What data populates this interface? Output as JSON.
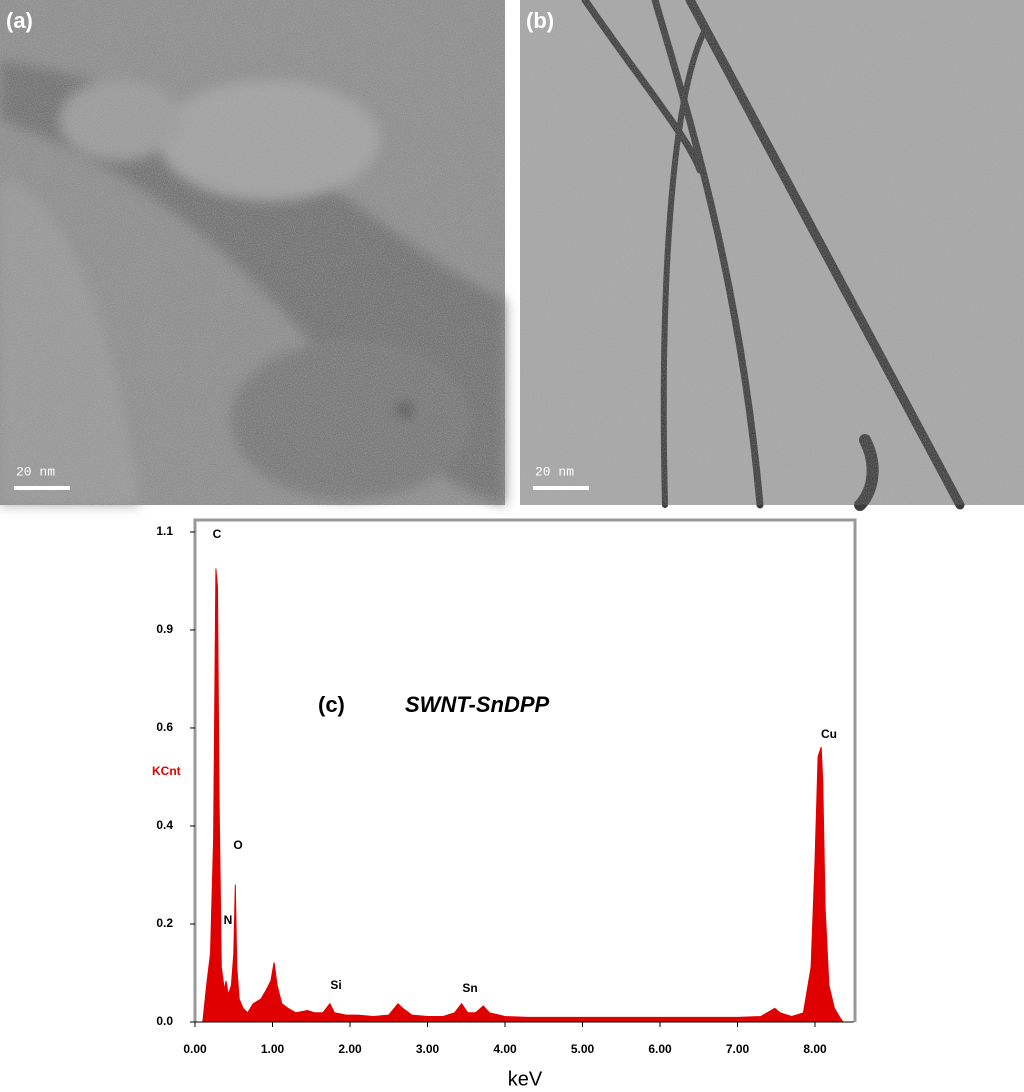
{
  "panels": [
    {
      "label": "(a)",
      "scale_bar": "20 nm"
    },
    {
      "label": "(b)",
      "scale_bar": "20 nm"
    }
  ],
  "chart_data": {
    "type": "area",
    "panel_label": "(c)",
    "title": "SWNT-SnDPP",
    "x_label": "keV",
    "y_label": "KCnt",
    "annotations": [
      "C",
      "O",
      "N",
      "Si",
      "Sn",
      "Cu"
    ],
    "x": [
      0.1,
      0.15,
      0.2,
      0.24,
      0.27,
      0.29,
      0.31,
      0.34,
      0.38,
      0.4,
      0.43,
      0.47,
      0.5,
      0.52,
      0.54,
      0.57,
      0.62,
      0.68,
      0.75,
      0.85,
      0.92,
      0.98,
      1.02,
      1.06,
      1.12,
      1.2,
      1.3,
      1.45,
      1.55,
      1.65,
      1.74,
      1.8,
      1.95,
      2.1,
      2.3,
      2.5,
      2.62,
      2.68,
      2.8,
      3.0,
      3.2,
      3.35,
      3.44,
      3.52,
      3.62,
      3.72,
      3.8,
      4.0,
      4.3,
      4.6,
      5.0,
      5.5,
      6.0,
      6.5,
      7.0,
      7.3,
      7.48,
      7.55,
      7.7,
      7.85,
      7.95,
      8.0,
      8.04,
      8.08,
      8.1,
      8.13,
      8.18,
      8.25,
      8.32,
      8.36
    ],
    "series": [
      {
        "color": "#e00000",
        "values": [
          0,
          0.08,
          0.15,
          0.4,
          0.99,
          0.95,
          0.5,
          0.12,
          0.07,
          0.09,
          0.06,
          0.08,
          0.15,
          0.3,
          0.12,
          0.05,
          0.03,
          0.02,
          0.04,
          0.05,
          0.07,
          0.09,
          0.13,
          0.08,
          0.04,
          0.03,
          0.02,
          0.025,
          0.02,
          0.02,
          0.04,
          0.02,
          0.015,
          0.015,
          0.012,
          0.015,
          0.04,
          0.03,
          0.015,
          0.012,
          0.012,
          0.02,
          0.04,
          0.02,
          0.02,
          0.035,
          0.02,
          0.012,
          0.01,
          0.01,
          0.01,
          0.01,
          0.01,
          0.01,
          0.01,
          0.012,
          0.03,
          0.02,
          0.012,
          0.02,
          0.12,
          0.35,
          0.58,
          0.6,
          0.52,
          0.25,
          0.08,
          0.03,
          0.01,
          0
        ]
      }
    ],
    "xlim": [
      0,
      8.5
    ],
    "xticks": [
      {
        "value": 0,
        "label": "0.00"
      },
      {
        "value": 1,
        "label": "1.00"
      },
      {
        "value": 2,
        "label": "2.00"
      },
      {
        "value": 3,
        "label": "3.00"
      },
      {
        "value": 4,
        "label": "4.00"
      },
      {
        "value": 5,
        "label": "5.00"
      },
      {
        "value": 6,
        "label": "6.00"
      },
      {
        "value": 7,
        "label": "7.00"
      },
      {
        "value": 8,
        "label": "8.00"
      }
    ],
    "ylim": [
      0,
      1.1
    ],
    "yticks": [
      {
        "value": 0,
        "label": "0.0"
      },
      {
        "value": 0.214,
        "label": "0.2"
      },
      {
        "value": 0.428,
        "label": "0.4"
      },
      {
        "value": 0.642,
        "label": "0.6"
      },
      {
        "value": 0.856,
        "label": "0.9"
      },
      {
        "value": 1.07,
        "label": "1.1"
      }
    ]
  }
}
